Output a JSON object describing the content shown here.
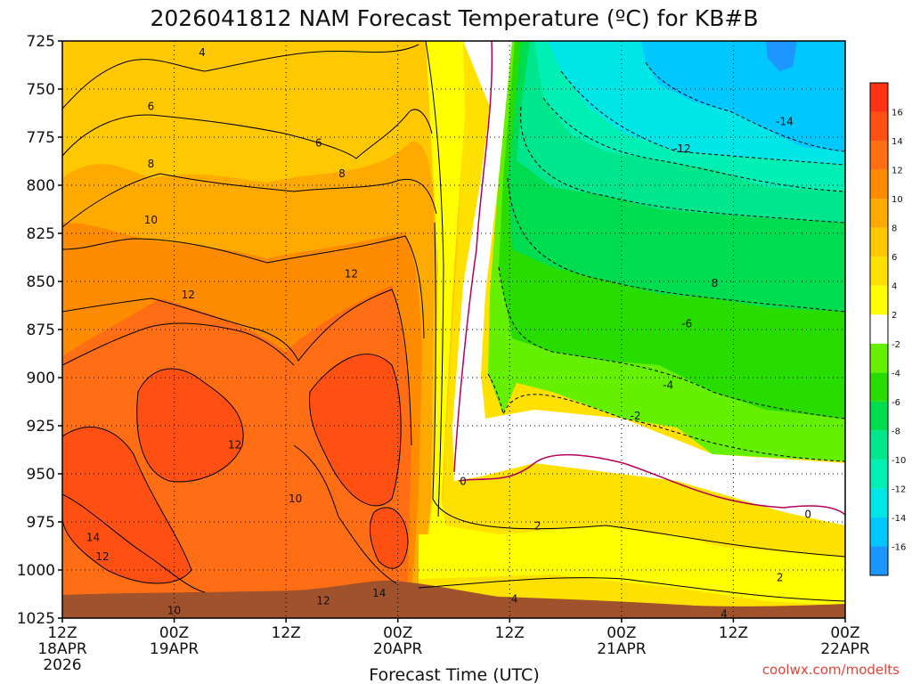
{
  "chart_data": {
    "type": "heatmap",
    "title": "2026041812 NAM Forecast Temperature (ºC) for KB#B",
    "xlabel": "Forecast Time (UTC)",
    "ylabel": "",
    "y_axis": {
      "variable": "pressure (hPa)",
      "range": [
        725,
        1025
      ],
      "ticks": [
        "725",
        "750",
        "775",
        "800",
        "825",
        "850",
        "875",
        "900",
        "925",
        "950",
        "975",
        "1000",
        "1025"
      ]
    },
    "x_axis": {
      "range_hours": [
        0,
        84
      ],
      "ticks": [
        {
          "hour": 0,
          "line1": "12Z",
          "line2": "18APR",
          "line3": "2026"
        },
        {
          "hour": 12,
          "line1": "00Z",
          "line2": "19APR",
          "line3": ""
        },
        {
          "hour": 24,
          "line1": "12Z",
          "line2": "",
          "line3": ""
        },
        {
          "hour": 36,
          "line1": "00Z",
          "line2": "20APR",
          "line3": ""
        },
        {
          "hour": 48,
          "line1": "12Z",
          "line2": "",
          "line3": ""
        },
        {
          "hour": 60,
          "line1": "00Z",
          "line2": "21APR",
          "line3": ""
        },
        {
          "hour": 72,
          "line1": "12Z",
          "line2": "",
          "line3": ""
        },
        {
          "hour": 84,
          "line1": "00Z",
          "line2": "22APR",
          "line3": ""
        }
      ]
    },
    "colorbar": {
      "levels": [
        -18,
        -16,
        -14,
        -12,
        -10,
        -8,
        -6,
        -4,
        -2,
        2,
        4,
        6,
        8,
        10,
        12,
        14,
        16,
        18
      ],
      "labels": [
        "-16",
        "-14",
        "-12",
        "-10",
        "-8",
        "-6",
        "-4",
        "-2",
        "2",
        "4",
        "6",
        "8",
        "10",
        "12",
        "14",
        "16"
      ],
      "colors": [
        "#1e96ff",
        "#00c8ff",
        "#00e6e6",
        "#00f0b4",
        "#00e68c",
        "#00dc50",
        "#28dc00",
        "#64f000",
        "#ffffff",
        "#ffff00",
        "#ffe100",
        "#ffc800",
        "#ffaa00",
        "#ff8c00",
        "#ff6e14",
        "#ff5014",
        "#ff3214"
      ]
    },
    "contour_labels": [
      {
        "text": "4",
        "hour": 15,
        "p": 731
      },
      {
        "text": "6",
        "hour": 9.5,
        "p": 759
      },
      {
        "text": "6",
        "hour": 27.5,
        "p": 778
      },
      {
        "text": "8",
        "hour": 9.5,
        "p": 789
      },
      {
        "text": "8",
        "hour": 30,
        "p": 794
      },
      {
        "text": "10",
        "hour": 9.5,
        "p": 818
      },
      {
        "text": "12",
        "hour": 31,
        "p": 846
      },
      {
        "text": "12",
        "hour": 13.5,
        "p": 857
      },
      {
        "text": "12",
        "hour": 18.5,
        "p": 935
      },
      {
        "text": "10",
        "hour": 25,
        "p": 963
      },
      {
        "text": "14",
        "hour": 3.3,
        "p": 983
      },
      {
        "text": "12",
        "hour": 4.3,
        "p": 993
      },
      {
        "text": "14",
        "hour": 34,
        "p": 1012
      },
      {
        "text": "12",
        "hour": 28,
        "p": 1016
      },
      {
        "text": "10",
        "hour": 12,
        "p": 1021
      },
      {
        "text": "0",
        "hour": 43,
        "p": 954
      },
      {
        "text": "2",
        "hour": 51,
        "p": 977
      },
      {
        "text": "4",
        "hour": 48.5,
        "p": 1015
      },
      {
        "text": "-2",
        "hour": 61.5,
        "p": 920
      },
      {
        "text": "-4",
        "hour": 65,
        "p": 904
      },
      {
        "text": "-6",
        "hour": 67,
        "p": 872
      },
      {
        "text": "8",
        "hour": 70,
        "p": 851
      },
      {
        "text": "-12",
        "hour": 66.5,
        "p": 781
      },
      {
        "text": "-14",
        "hour": 77.5,
        "p": 767
      },
      {
        "text": "0",
        "hour": 80,
        "p": 971
      },
      {
        "text": "2",
        "hour": 77,
        "p": 1004
      },
      {
        "text": "4",
        "hour": 71,
        "p": 1023
      }
    ]
  },
  "credit": "coolwx.com/modelts"
}
